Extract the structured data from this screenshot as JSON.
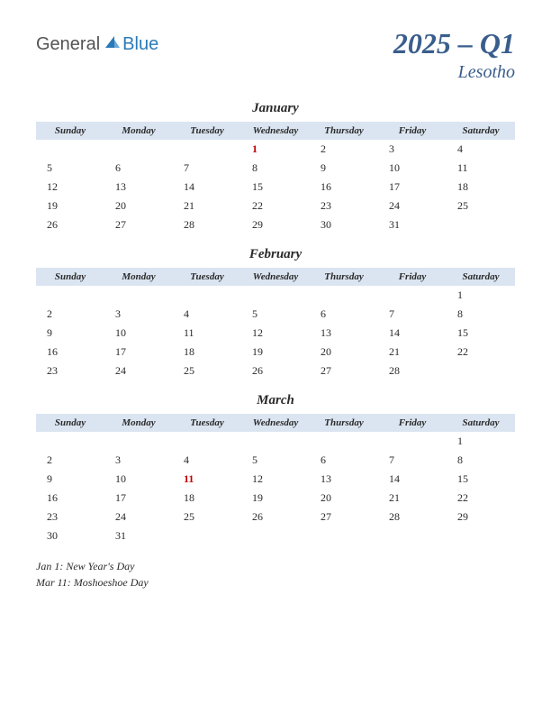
{
  "logo": {
    "general": "General",
    "blue": "Blue"
  },
  "title": {
    "main": "2025 – Q1",
    "sub": "Lesotho"
  },
  "day_headers": [
    "Sunday",
    "Monday",
    "Tuesday",
    "Wednesday",
    "Thursday",
    "Friday",
    "Saturday"
  ],
  "colors": {
    "header_bg": "#dbe5f1",
    "title_color": "#3a5e8c",
    "holiday_color": "#c00000",
    "text_color": "#2a2a2a"
  },
  "months": [
    {
      "name": "January",
      "weeks": [
        [
          "",
          "",
          "",
          "1",
          "2",
          "3",
          "4"
        ],
        [
          "5",
          "6",
          "7",
          "8",
          "9",
          "10",
          "11"
        ],
        [
          "12",
          "13",
          "14",
          "15",
          "16",
          "17",
          "18"
        ],
        [
          "19",
          "20",
          "21",
          "22",
          "23",
          "24",
          "25"
        ],
        [
          "26",
          "27",
          "28",
          "29",
          "30",
          "31",
          ""
        ]
      ],
      "holidays": [
        "1"
      ]
    },
    {
      "name": "February",
      "weeks": [
        [
          "",
          "",
          "",
          "",
          "",
          "",
          "1"
        ],
        [
          "2",
          "3",
          "4",
          "5",
          "6",
          "7",
          "8"
        ],
        [
          "9",
          "10",
          "11",
          "12",
          "13",
          "14",
          "15"
        ],
        [
          "16",
          "17",
          "18",
          "19",
          "20",
          "21",
          "22"
        ],
        [
          "23",
          "24",
          "25",
          "26",
          "27",
          "28",
          ""
        ]
      ],
      "holidays": []
    },
    {
      "name": "March",
      "weeks": [
        [
          "",
          "",
          "",
          "",
          "",
          "",
          "1"
        ],
        [
          "2",
          "3",
          "4",
          "5",
          "6",
          "7",
          "8"
        ],
        [
          "9",
          "10",
          "11",
          "12",
          "13",
          "14",
          "15"
        ],
        [
          "16",
          "17",
          "18",
          "19",
          "20",
          "21",
          "22"
        ],
        [
          "23",
          "24",
          "25",
          "26",
          "27",
          "28",
          "29"
        ],
        [
          "30",
          "31",
          "",
          "",
          "",
          "",
          ""
        ]
      ],
      "holidays": [
        "11"
      ]
    }
  ],
  "holiday_notes": [
    "Jan 1: New Year's Day",
    "Mar 11: Moshoeshoe Day"
  ]
}
